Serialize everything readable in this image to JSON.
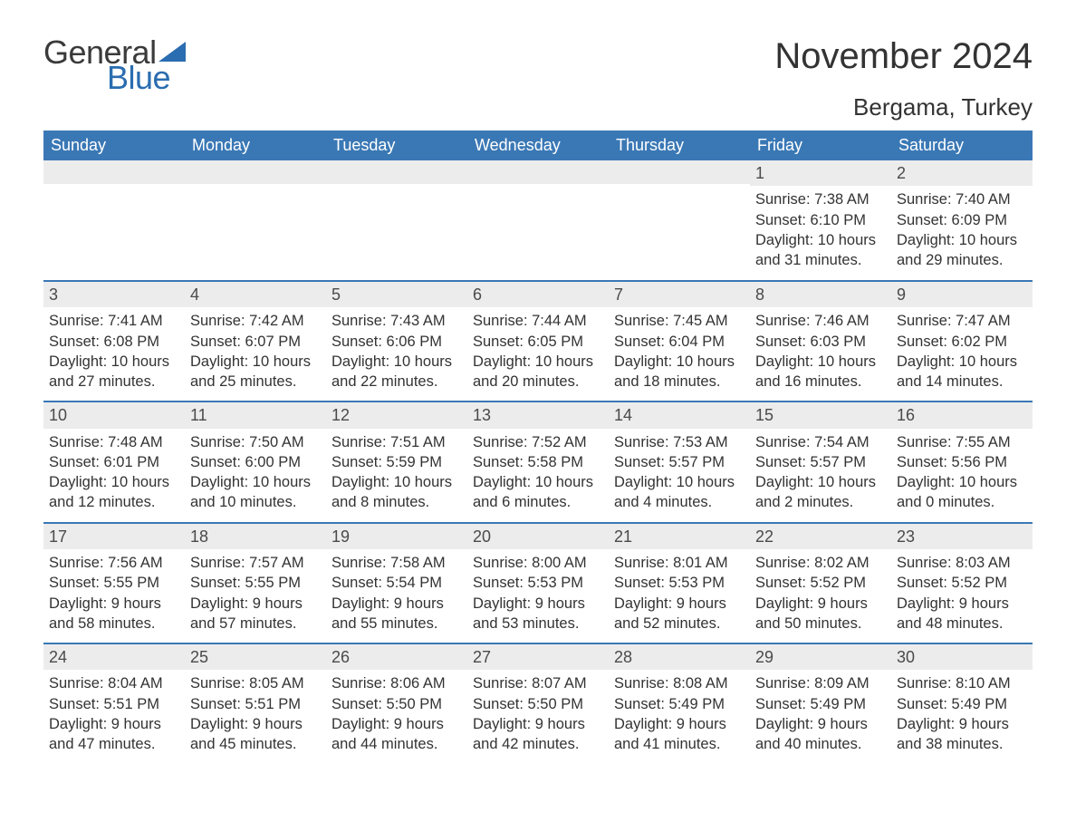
{
  "logo": {
    "general": "General",
    "blue": "Blue",
    "sail_color": "#2a6db0"
  },
  "title": "November 2024",
  "location": "Bergama, Turkey",
  "colors": {
    "header_bg": "#3a78b5",
    "header_text": "#ffffff",
    "row_divider": "#3a78b5",
    "daynum_bg": "#ececec",
    "text": "#333333",
    "logo_gray": "#3a3a3a",
    "logo_blue": "#2a6db0",
    "page_bg": "#ffffff"
  },
  "days_of_week": [
    "Sunday",
    "Monday",
    "Tuesday",
    "Wednesday",
    "Thursday",
    "Friday",
    "Saturday"
  ],
  "weeks": [
    [
      {
        "empty": true
      },
      {
        "empty": true
      },
      {
        "empty": true
      },
      {
        "empty": true
      },
      {
        "empty": true
      },
      {
        "day": "1",
        "sunrise": "Sunrise: 7:38 AM",
        "sunset": "Sunset: 6:10 PM",
        "daylight1": "Daylight: 10 hours",
        "daylight2": "and 31 minutes."
      },
      {
        "day": "2",
        "sunrise": "Sunrise: 7:40 AM",
        "sunset": "Sunset: 6:09 PM",
        "daylight1": "Daylight: 10 hours",
        "daylight2": "and 29 minutes."
      }
    ],
    [
      {
        "day": "3",
        "sunrise": "Sunrise: 7:41 AM",
        "sunset": "Sunset: 6:08 PM",
        "daylight1": "Daylight: 10 hours",
        "daylight2": "and 27 minutes."
      },
      {
        "day": "4",
        "sunrise": "Sunrise: 7:42 AM",
        "sunset": "Sunset: 6:07 PM",
        "daylight1": "Daylight: 10 hours",
        "daylight2": "and 25 minutes."
      },
      {
        "day": "5",
        "sunrise": "Sunrise: 7:43 AM",
        "sunset": "Sunset: 6:06 PM",
        "daylight1": "Daylight: 10 hours",
        "daylight2": "and 22 minutes."
      },
      {
        "day": "6",
        "sunrise": "Sunrise: 7:44 AM",
        "sunset": "Sunset: 6:05 PM",
        "daylight1": "Daylight: 10 hours",
        "daylight2": "and 20 minutes."
      },
      {
        "day": "7",
        "sunrise": "Sunrise: 7:45 AM",
        "sunset": "Sunset: 6:04 PM",
        "daylight1": "Daylight: 10 hours",
        "daylight2": "and 18 minutes."
      },
      {
        "day": "8",
        "sunrise": "Sunrise: 7:46 AM",
        "sunset": "Sunset: 6:03 PM",
        "daylight1": "Daylight: 10 hours",
        "daylight2": "and 16 minutes."
      },
      {
        "day": "9",
        "sunrise": "Sunrise: 7:47 AM",
        "sunset": "Sunset: 6:02 PM",
        "daylight1": "Daylight: 10 hours",
        "daylight2": "and 14 minutes."
      }
    ],
    [
      {
        "day": "10",
        "sunrise": "Sunrise: 7:48 AM",
        "sunset": "Sunset: 6:01 PM",
        "daylight1": "Daylight: 10 hours",
        "daylight2": "and 12 minutes."
      },
      {
        "day": "11",
        "sunrise": "Sunrise: 7:50 AM",
        "sunset": "Sunset: 6:00 PM",
        "daylight1": "Daylight: 10 hours",
        "daylight2": "and 10 minutes."
      },
      {
        "day": "12",
        "sunrise": "Sunrise: 7:51 AM",
        "sunset": "Sunset: 5:59 PM",
        "daylight1": "Daylight: 10 hours",
        "daylight2": "and 8 minutes."
      },
      {
        "day": "13",
        "sunrise": "Sunrise: 7:52 AM",
        "sunset": "Sunset: 5:58 PM",
        "daylight1": "Daylight: 10 hours",
        "daylight2": "and 6 minutes."
      },
      {
        "day": "14",
        "sunrise": "Sunrise: 7:53 AM",
        "sunset": "Sunset: 5:57 PM",
        "daylight1": "Daylight: 10 hours",
        "daylight2": "and 4 minutes."
      },
      {
        "day": "15",
        "sunrise": "Sunrise: 7:54 AM",
        "sunset": "Sunset: 5:57 PM",
        "daylight1": "Daylight: 10 hours",
        "daylight2": "and 2 minutes."
      },
      {
        "day": "16",
        "sunrise": "Sunrise: 7:55 AM",
        "sunset": "Sunset: 5:56 PM",
        "daylight1": "Daylight: 10 hours",
        "daylight2": "and 0 minutes."
      }
    ],
    [
      {
        "day": "17",
        "sunrise": "Sunrise: 7:56 AM",
        "sunset": "Sunset: 5:55 PM",
        "daylight1": "Daylight: 9 hours",
        "daylight2": "and 58 minutes."
      },
      {
        "day": "18",
        "sunrise": "Sunrise: 7:57 AM",
        "sunset": "Sunset: 5:55 PM",
        "daylight1": "Daylight: 9 hours",
        "daylight2": "and 57 minutes."
      },
      {
        "day": "19",
        "sunrise": "Sunrise: 7:58 AM",
        "sunset": "Sunset: 5:54 PM",
        "daylight1": "Daylight: 9 hours",
        "daylight2": "and 55 minutes."
      },
      {
        "day": "20",
        "sunrise": "Sunrise: 8:00 AM",
        "sunset": "Sunset: 5:53 PM",
        "daylight1": "Daylight: 9 hours",
        "daylight2": "and 53 minutes."
      },
      {
        "day": "21",
        "sunrise": "Sunrise: 8:01 AM",
        "sunset": "Sunset: 5:53 PM",
        "daylight1": "Daylight: 9 hours",
        "daylight2": "and 52 minutes."
      },
      {
        "day": "22",
        "sunrise": "Sunrise: 8:02 AM",
        "sunset": "Sunset: 5:52 PM",
        "daylight1": "Daylight: 9 hours",
        "daylight2": "and 50 minutes."
      },
      {
        "day": "23",
        "sunrise": "Sunrise: 8:03 AM",
        "sunset": "Sunset: 5:52 PM",
        "daylight1": "Daylight: 9 hours",
        "daylight2": "and 48 minutes."
      }
    ],
    [
      {
        "day": "24",
        "sunrise": "Sunrise: 8:04 AM",
        "sunset": "Sunset: 5:51 PM",
        "daylight1": "Daylight: 9 hours",
        "daylight2": "and 47 minutes."
      },
      {
        "day": "25",
        "sunrise": "Sunrise: 8:05 AM",
        "sunset": "Sunset: 5:51 PM",
        "daylight1": "Daylight: 9 hours",
        "daylight2": "and 45 minutes."
      },
      {
        "day": "26",
        "sunrise": "Sunrise: 8:06 AM",
        "sunset": "Sunset: 5:50 PM",
        "daylight1": "Daylight: 9 hours",
        "daylight2": "and 44 minutes."
      },
      {
        "day": "27",
        "sunrise": "Sunrise: 8:07 AM",
        "sunset": "Sunset: 5:50 PM",
        "daylight1": "Daylight: 9 hours",
        "daylight2": "and 42 minutes."
      },
      {
        "day": "28",
        "sunrise": "Sunrise: 8:08 AM",
        "sunset": "Sunset: 5:49 PM",
        "daylight1": "Daylight: 9 hours",
        "daylight2": "and 41 minutes."
      },
      {
        "day": "29",
        "sunrise": "Sunrise: 8:09 AM",
        "sunset": "Sunset: 5:49 PM",
        "daylight1": "Daylight: 9 hours",
        "daylight2": "and 40 minutes."
      },
      {
        "day": "30",
        "sunrise": "Sunrise: 8:10 AM",
        "sunset": "Sunset: 5:49 PM",
        "daylight1": "Daylight: 9 hours",
        "daylight2": "and 38 minutes."
      }
    ]
  ]
}
